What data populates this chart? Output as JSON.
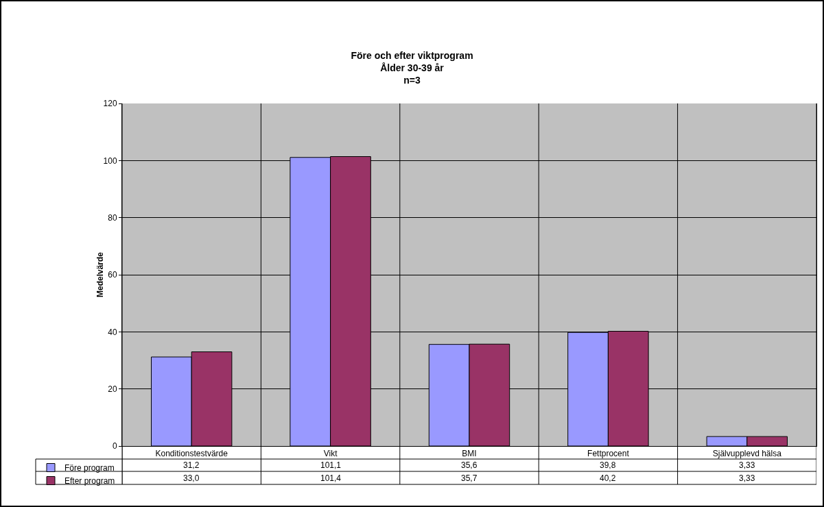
{
  "chart_data": {
    "type": "bar",
    "title": "Före och efter viktprogram\nÅlder 30-39 år\nn=3",
    "ylabel": "Medelvärde",
    "categories": [
      "Konditionstestvärde",
      "Vikt",
      "BMI",
      "Fettprocent",
      "Självupplevd hälsa"
    ],
    "series": [
      {
        "name": "Före program",
        "color": "#9999ff",
        "values": [
          31.2,
          101.1,
          35.6,
          39.8,
          3.33
        ],
        "value_labels": [
          "31,2",
          "101,1",
          "35,6",
          "39,8",
          "3,33"
        ]
      },
      {
        "name": "Efter program",
        "color": "#993366",
        "values": [
          33.0,
          101.4,
          35.7,
          40.2,
          3.33
        ],
        "value_labels": [
          "33,0",
          "101,4",
          "35,7",
          "40,2",
          "3,33"
        ]
      }
    ],
    "ylim": [
      0,
      120
    ],
    "yticks": [
      0,
      20,
      40,
      60,
      80,
      100,
      120
    ],
    "grid": true,
    "legend": "bottom left"
  }
}
